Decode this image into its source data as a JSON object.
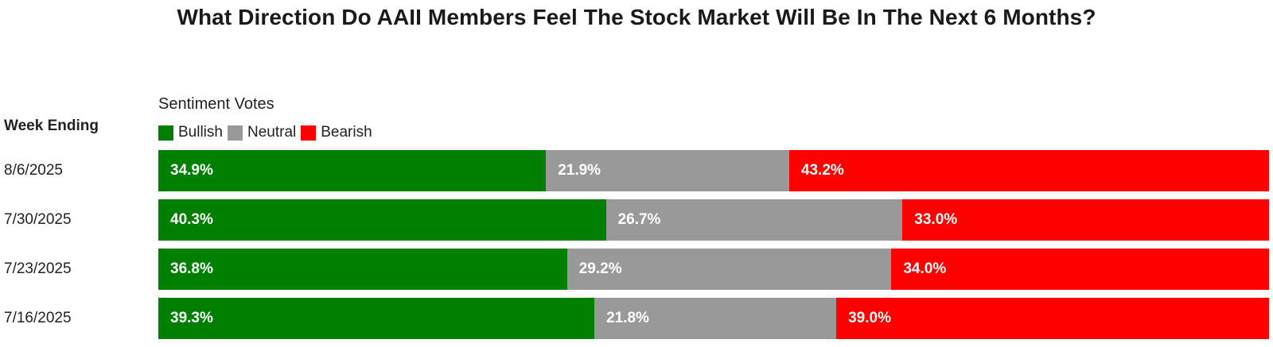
{
  "chart_data": {
    "type": "bar",
    "orientation": "horizontal",
    "stacked": true,
    "title": "What Direction Do AAII Members Feel The Stock Market Will Be In The Next 6 Months?",
    "legend_title": "Sentiment Votes",
    "category_header": "Week Ending",
    "legend_placement": "top-left",
    "categories": [
      "8/6/2025",
      "7/30/2025",
      "7/23/2025",
      "7/16/2025"
    ],
    "series": [
      {
        "name": "Bullish",
        "color": "#008000",
        "values": [
          34.9,
          40.3,
          36.8,
          39.3
        ],
        "labels": [
          "34.9%",
          "40.3%",
          "36.8%",
          "39.3%"
        ]
      },
      {
        "name": "Neutral",
        "color": "#999999",
        "values": [
          21.9,
          26.7,
          29.2,
          21.8
        ],
        "labels": [
          "21.9%",
          "26.7%",
          "29.2%",
          "21.8%"
        ]
      },
      {
        "name": "Bearish",
        "color": "#ff0000",
        "values": [
          43.2,
          33.0,
          34.0,
          39.0
        ],
        "labels": [
          "43.2%",
          "33.0%",
          "34.0%",
          "39.0%"
        ]
      }
    ]
  }
}
